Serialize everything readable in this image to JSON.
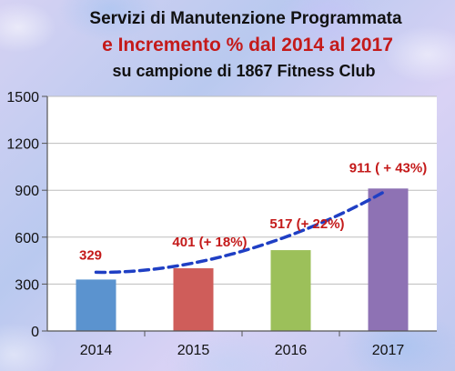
{
  "title_line1": "Servizi di Manutenzione Programmata",
  "title_line2": "e Incremento %  dal 2014 al 2017",
  "title_line3": "su campione di 1867 Fitness Club",
  "chart_data": {
    "type": "bar",
    "categories": [
      "2014",
      "2015",
      "2016",
      "2017"
    ],
    "values": [
      329,
      401,
      517,
      911
    ],
    "data_labels": [
      "329",
      "401  (+ 18%)",
      "517 (+ 22%)",
      "911 ( + 43%)"
    ],
    "bar_colors": [
      "#5b93cf",
      "#cf5d5a",
      "#9cc05a",
      "#8e72b4"
    ],
    "ylim": [
      0,
      1500
    ],
    "yticks": [
      "0",
      "300",
      "600",
      "900",
      "1200",
      "1500"
    ],
    "ytick_values": [
      0,
      300,
      600,
      900,
      1200,
      1500
    ],
    "grid": true,
    "trendline": {
      "style": "dashed",
      "color": "#1f3fc4"
    },
    "label_color": "#c41a1a"
  }
}
